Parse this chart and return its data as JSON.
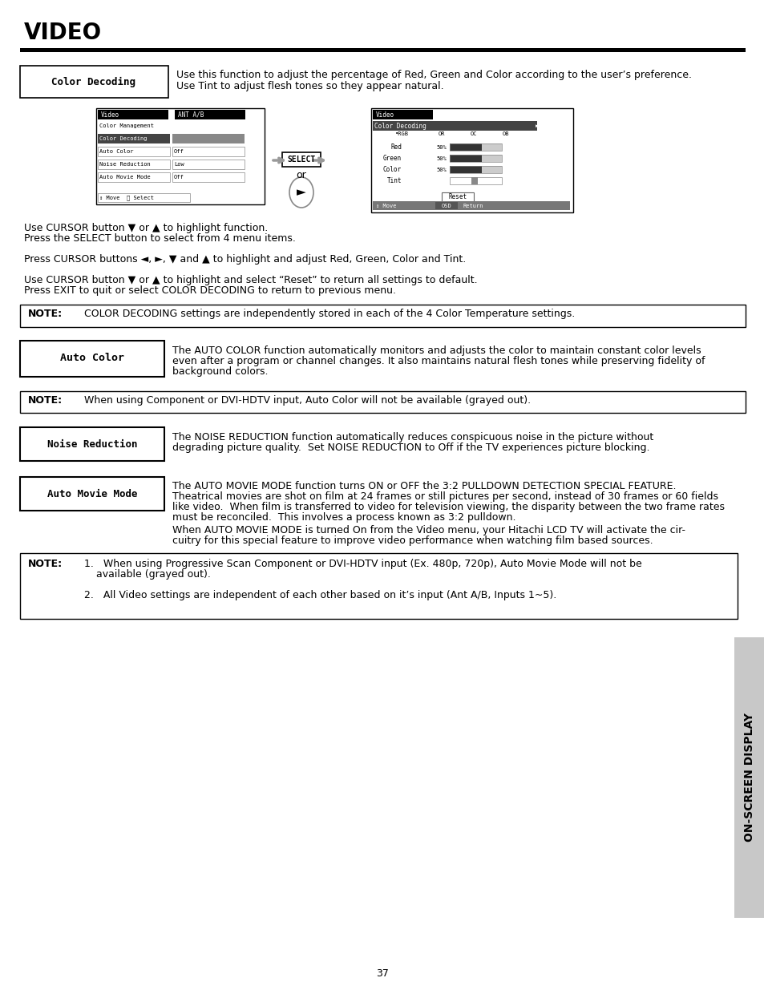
{
  "title": "VIDEO",
  "page_number": "37",
  "sidebar_text": "ON-SCREEN DISPLAY",
  "color_decoding_label": "Color Decoding",
  "auto_color_label": "Auto Color",
  "noise_label": "Noise Reduction",
  "movie_label": "Auto Movie Mode"
}
